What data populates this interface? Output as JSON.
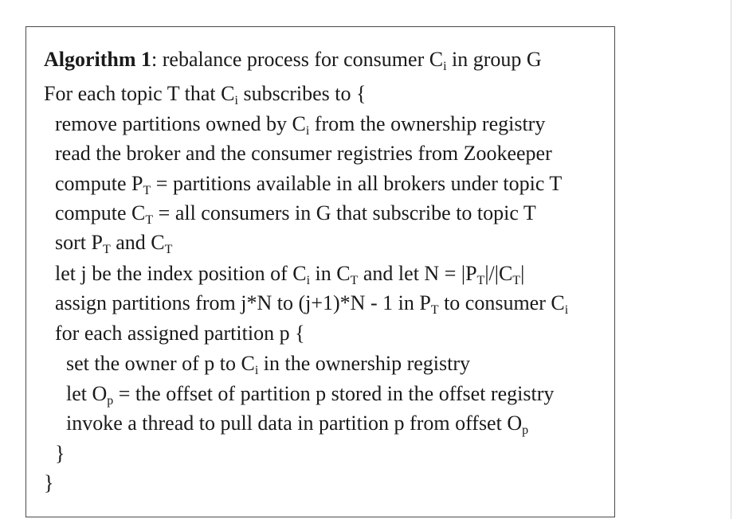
{
  "algorithm": {
    "title_bold": "Algorithm 1",
    "title_rest": ": rebalance process for consumer C",
    "title_sub": "i",
    "title_tail": " in group G",
    "lines": [
      {
        "indent": 0,
        "parts": [
          {
            "t": "For each topic T that C"
          },
          {
            "s": "i"
          },
          {
            "t": " subscribes to {"
          }
        ]
      },
      {
        "indent": 1,
        "parts": [
          {
            "t": "remove partitions owned by C"
          },
          {
            "s": "i"
          },
          {
            "t": " from the ownership registry"
          }
        ]
      },
      {
        "indent": 1,
        "parts": [
          {
            "t": "read the broker and the consumer registries from Zookeeper"
          }
        ]
      },
      {
        "indent": 1,
        "parts": [
          {
            "t": "compute P"
          },
          {
            "s": "T"
          },
          {
            "t": " = partitions available in all brokers under topic T"
          }
        ]
      },
      {
        "indent": 1,
        "parts": [
          {
            "t": "compute C"
          },
          {
            "s": "T"
          },
          {
            "t": " =  all consumers in G that subscribe to topic T"
          }
        ]
      },
      {
        "indent": 1,
        "parts": [
          {
            "t": "sort P"
          },
          {
            "s": "T"
          },
          {
            "t": " and C"
          },
          {
            "s": "T"
          }
        ]
      },
      {
        "indent": 1,
        "parts": [
          {
            "t": "let j be the index position of C"
          },
          {
            "s": "i"
          },
          {
            "t": " in C"
          },
          {
            "s": "T"
          },
          {
            "t": " and let N = |P"
          },
          {
            "s": "T"
          },
          {
            "t": "|/|C"
          },
          {
            "s": "T"
          },
          {
            "t": "|"
          }
        ]
      },
      {
        "indent": 1,
        "parts": [
          {
            "t": "assign partitions from j*N to (j+1)*N - 1 in P"
          },
          {
            "s": "T"
          },
          {
            "t": " to consumer C"
          },
          {
            "s": "i"
          }
        ]
      },
      {
        "indent": 1,
        "parts": [
          {
            "t": "for each assigned partition p {"
          }
        ]
      },
      {
        "indent": 2,
        "parts": [
          {
            "t": "set the owner of p to C"
          },
          {
            "s": "i"
          },
          {
            "t": " in the ownership registry"
          }
        ]
      },
      {
        "indent": 2,
        "parts": [
          {
            "t": "let O"
          },
          {
            "s": "p"
          },
          {
            "t": " = the offset of partition p stored in the offset registry"
          }
        ]
      },
      {
        "indent": 2,
        "parts": [
          {
            "t": "invoke a thread to pull data in partition p from offset O"
          },
          {
            "s": "p"
          }
        ]
      },
      {
        "indent": 1,
        "parts": [
          {
            "t": "}"
          }
        ]
      },
      {
        "indent": 0,
        "parts": [
          {
            "t": "}"
          }
        ]
      }
    ]
  }
}
